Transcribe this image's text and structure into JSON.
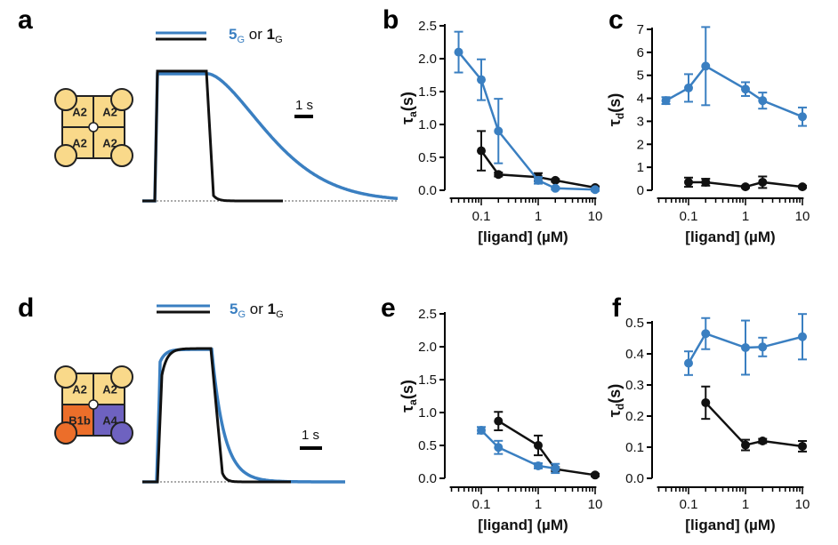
{
  "panels": {
    "a": "a",
    "b": "b",
    "c": "c",
    "d": "d",
    "e": "e",
    "f": "f"
  },
  "colors": {
    "blue": "#3a7fc1",
    "black": "#111111",
    "yellow": "#f9d98a",
    "orange": "#ec6e2a",
    "purple": "#6e62c0"
  },
  "legend": {
    "blue_label": "5",
    "blue_sub": "G",
    "or": " or ",
    "black_label": "1",
    "black_sub": "G"
  },
  "scale_bar": "1 s",
  "schematic_a": {
    "cells": [
      "A2",
      "A2",
      "A2",
      "A2"
    ]
  },
  "schematic_d": {
    "cells": [
      "A2",
      "A2",
      "B1b",
      "A4"
    ]
  },
  "chart_data": [
    {
      "panel": "b",
      "type": "line",
      "xscale": "log",
      "xlabel": "[ligand] (µM)",
      "ylabel": "τa(s)",
      "ylabel_main": "τ",
      "ylabel_sub": "a",
      "ylabel_tail": "(s)",
      "xticks": [
        "0.1",
        "1",
        "10"
      ],
      "xtick_values": [
        0.1,
        1,
        10
      ],
      "xlim": [
        0.028,
        10.5
      ],
      "yticks": [
        "0.0",
        "0.5",
        "1.0",
        "1.5",
        "2.0",
        "2.5"
      ],
      "ylim": [
        0,
        2.5
      ],
      "series": [
        {
          "name": "5G",
          "color": "blue",
          "x": [
            0.04,
            0.1,
            0.2,
            1,
            2,
            10
          ],
          "y": [
            2.1,
            1.68,
            0.9,
            0.15,
            0.03,
            0.01
          ],
          "err": [
            0.31,
            0.31,
            0.49,
            0.05,
            0.02,
            0.02
          ]
        },
        {
          "name": "1G",
          "color": "black",
          "x": [
            0.1,
            0.2,
            1,
            2,
            10
          ],
          "y": [
            0.6,
            0.24,
            0.2,
            0.15,
            0.04
          ],
          "err": [
            0.3,
            0.03,
            0.06,
            0.02,
            0.02
          ]
        }
      ]
    },
    {
      "panel": "c",
      "type": "line",
      "xscale": "log",
      "xlabel": "[ligand] (µM)",
      "ylabel": "τd(s)",
      "ylabel_main": "τ",
      "ylabel_sub": "d",
      "ylabel_tail": "(s)",
      "xticks": [
        "0.1",
        "1",
        "10"
      ],
      "xtick_values": [
        0.1,
        1,
        10
      ],
      "xlim": [
        0.028,
        10.5
      ],
      "yticks": [
        "0",
        "1",
        "2",
        "3",
        "4",
        "5",
        "6",
        "7"
      ],
      "ylim": [
        0,
        7
      ],
      "series": [
        {
          "name": "5G",
          "color": "blue",
          "x": [
            0.04,
            0.1,
            0.2,
            1,
            2,
            10
          ],
          "y": [
            3.9,
            4.45,
            5.4,
            4.4,
            3.9,
            3.2
          ],
          "err": [
            0.15,
            0.6,
            1.7,
            0.3,
            0.35,
            0.4
          ]
        },
        {
          "name": "1G",
          "color": "black",
          "x": [
            0.1,
            0.2,
            1,
            2,
            10
          ],
          "y": [
            0.35,
            0.35,
            0.15,
            0.35,
            0.15
          ],
          "err": [
            0.2,
            0.15,
            0.05,
            0.25,
            0.05
          ]
        }
      ]
    },
    {
      "panel": "e",
      "type": "line",
      "xscale": "log",
      "xlabel": "[ligand] (µM)",
      "ylabel": "τa(s)",
      "ylabel_main": "τ",
      "ylabel_sub": "a",
      "ylabel_tail": "(s)",
      "xticks": [
        "0.1",
        "1",
        "10"
      ],
      "xtick_values": [
        0.1,
        1,
        10
      ],
      "xlim": [
        0.028,
        10.5
      ],
      "yticks": [
        "0.0",
        "0.5",
        "1.0",
        "1.5",
        "2.0",
        "2.5"
      ],
      "ylim": [
        0,
        2.5
      ],
      "series": [
        {
          "name": "5G",
          "color": "blue",
          "x": [
            0.1,
            0.2,
            1,
            2
          ],
          "y": [
            0.73,
            0.47,
            0.19,
            0.15
          ],
          "err": [
            0.05,
            0.1,
            0.04,
            0.07
          ]
        },
        {
          "name": "1G",
          "color": "black",
          "x": [
            0.2,
            1,
            2,
            10
          ],
          "y": [
            0.87,
            0.5,
            0.14,
            0.05
          ],
          "err": [
            0.14,
            0.15,
            0.03,
            0.02
          ]
        }
      ]
    },
    {
      "panel": "f",
      "type": "line",
      "xscale": "log",
      "xlabel": "[ligand] (µM)",
      "ylabel": "τd(s)",
      "ylabel_main": "τ",
      "ylabel_sub": "d",
      "ylabel_tail": "(s)",
      "xticks": [
        "0.1",
        "1",
        "10"
      ],
      "xtick_values": [
        0.1,
        1,
        10
      ],
      "xlim": [
        0.028,
        10.5
      ],
      "yticks": [
        "0.0",
        "0.1",
        "0.2",
        "0.3",
        "0.4",
        "0.5"
      ],
      "ylim": [
        0,
        0.5
      ],
      "series": [
        {
          "name": "5G",
          "color": "blue",
          "x": [
            0.1,
            0.2,
            1,
            2,
            10
          ],
          "y": [
            0.37,
            0.465,
            0.42,
            0.422,
            0.455
          ],
          "err": [
            0.038,
            0.05,
            0.087,
            0.03,
            0.073
          ]
        },
        {
          "name": "1G",
          "color": "black",
          "x": [
            0.2,
            1,
            2,
            10
          ],
          "y": [
            0.243,
            0.107,
            0.12,
            0.103
          ],
          "err": [
            0.052,
            0.017,
            0.007,
            0.017
          ]
        }
      ]
    }
  ]
}
